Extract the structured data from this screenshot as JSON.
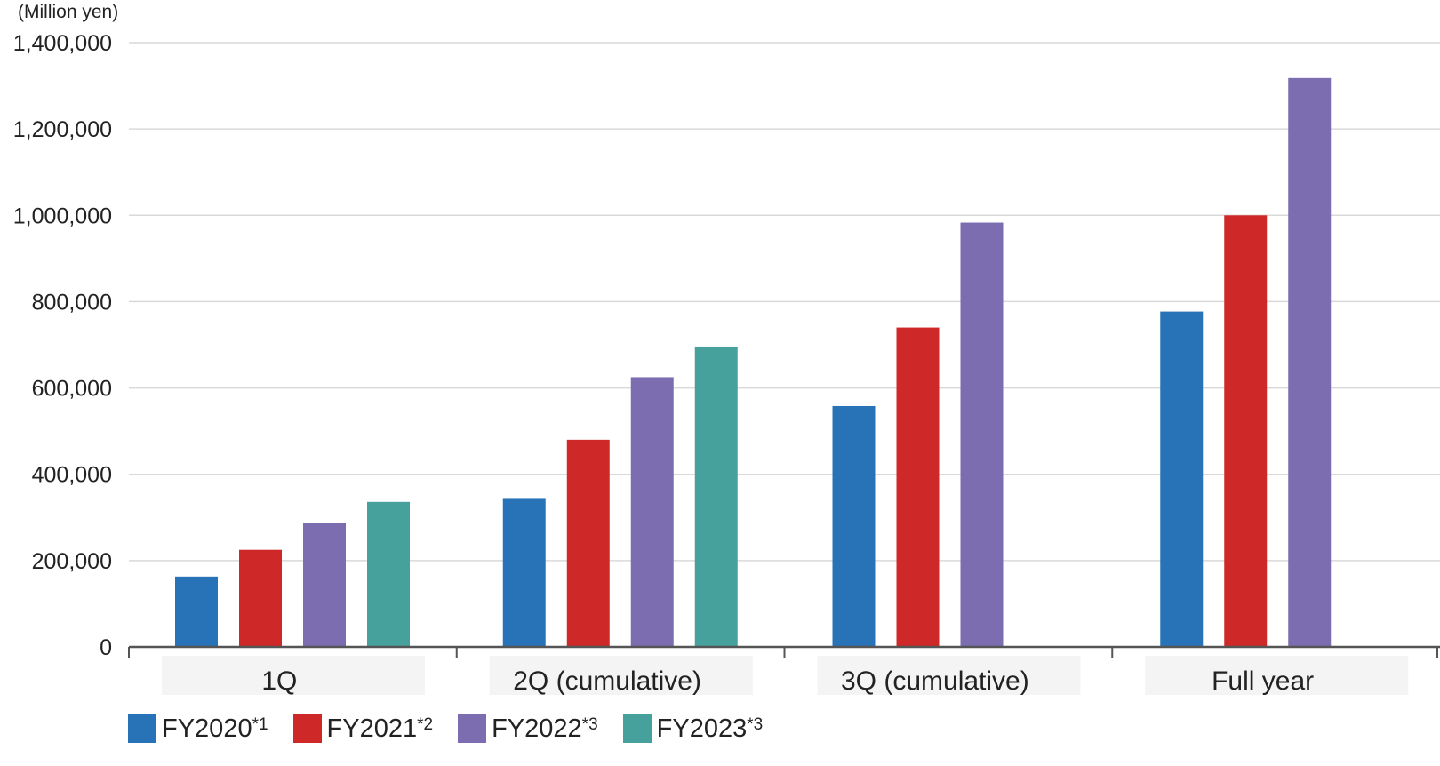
{
  "chart_data": {
    "type": "bar",
    "ylabel": "(Million yen)",
    "ylim": [
      0,
      1400000
    ],
    "ytick_values": [
      0,
      200000,
      400000,
      600000,
      800000,
      1000000,
      1200000,
      1400000
    ],
    "ytick_labels": [
      "0",
      "200,000",
      "400,000",
      "600,000",
      "800,000",
      "1,000,000",
      "1,200,000",
      "1,400,000"
    ],
    "grid": true,
    "legend_position": "bottom-left",
    "categories": [
      "1Q",
      "2Q (cumulative)",
      "3Q (cumulative)",
      "Full year"
    ],
    "series": [
      {
        "name": "FY2020",
        "note": "*1",
        "color": "#2873b8",
        "values": [
          163000,
          345000,
          558000,
          777000
        ]
      },
      {
        "name": "FY2021",
        "note": "*2",
        "color": "#cf2829",
        "values": [
          225000,
          480000,
          740000,
          1000000
        ]
      },
      {
        "name": "FY2022",
        "note": "*3",
        "color": "#7b6db0",
        "values": [
          287000,
          625000,
          983000,
          1318000
        ]
      },
      {
        "name": "FY2023",
        "note": "*3",
        "color": "#46a09c",
        "values": [
          336000,
          696000,
          null,
          null
        ]
      }
    ]
  }
}
